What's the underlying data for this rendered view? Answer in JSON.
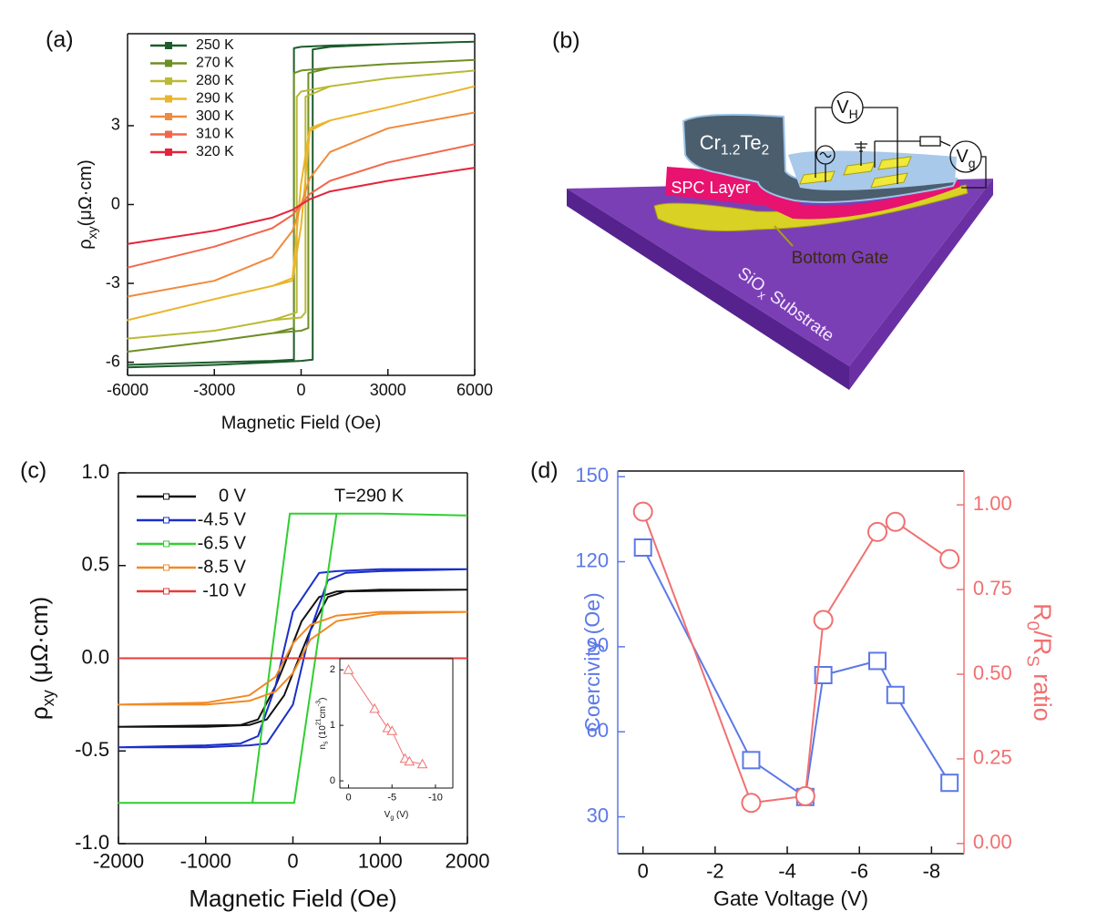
{
  "chart_data": [
    {
      "type": "line",
      "panel_label": "(a)",
      "xlabel": "Magnetic Field (Oe)",
      "ylabel": [
        "ρ",
        {
          "sub": "xy"
        },
        "(μΩ·cm)"
      ],
      "xlim": [
        -6000,
        6000
      ],
      "xticks": [
        -6000,
        -3000,
        0,
        3000,
        6000
      ],
      "ylim": [
        -6.5,
        6.5
      ],
      "yticks": [
        -6,
        -3,
        0,
        3
      ],
      "legend": "upper left",
      "series": [
        {
          "name": "250 K",
          "color": "#1d5c2c",
          "x": [
            6000,
            3000,
            1000,
            0,
            -250,
            -250,
            -1000,
            -3000,
            -6000,
            -6000,
            -3000,
            -1000,
            0,
            400,
            400,
            1000,
            3000,
            6000
          ],
          "values": [
            6.2,
            6.1,
            6.05,
            6.0,
            5.95,
            -5.9,
            -5.95,
            -6.0,
            -6.1,
            -6.2,
            -6.1,
            -6.0,
            -5.95,
            -5.9,
            5.9,
            6.0,
            6.1,
            6.2
          ]
        },
        {
          "name": "270 K",
          "color": "#6e8f25",
          "x": [
            6000,
            3000,
            1000,
            0,
            -250,
            -250,
            -1000,
            -3000,
            -6000,
            -6000,
            -3000,
            -1000,
            0,
            250,
            250,
            1000,
            3000,
            6000
          ],
          "values": [
            5.5,
            5.35,
            5.2,
            5.1,
            5.0,
            -4.7,
            -4.9,
            -5.2,
            -5.6,
            -5.6,
            -5.2,
            -4.9,
            -4.8,
            -4.7,
            5.0,
            5.2,
            5.35,
            5.5
          ]
        },
        {
          "name": "280 K",
          "color": "#b9ba35",
          "x": [
            6000,
            3000,
            1000,
            0,
            -150,
            -150,
            -1000,
            -3000,
            -6000,
            -6000,
            -3000,
            -1000,
            0,
            150,
            150,
            1000,
            3000,
            6000
          ],
          "values": [
            5.1,
            4.8,
            4.5,
            4.3,
            4.1,
            -4.1,
            -4.4,
            -4.8,
            -5.1,
            -5.1,
            -4.8,
            -4.4,
            -4.3,
            -4.1,
            4.1,
            4.5,
            4.8,
            5.1
          ]
        },
        {
          "name": "290 K",
          "color": "#e9b52b",
          "x": [
            6000,
            3000,
            1000,
            300,
            0,
            -300,
            -1000,
            -3000,
            -6000,
            -6000,
            -3000,
            -1000,
            -300,
            0,
            300,
            1000,
            3000,
            6000
          ],
          "values": [
            4.5,
            3.7,
            3.2,
            2.9,
            0.8,
            -2.8,
            -3.1,
            -3.6,
            -4.4,
            -4.4,
            -3.6,
            -3.1,
            -2.9,
            -0.8,
            2.8,
            3.2,
            3.7,
            4.5
          ]
        },
        {
          "name": "300 K",
          "color": "#f08a3c",
          "x": [
            -6000,
            -3000,
            -1000,
            -300,
            0,
            300,
            1000,
            3000,
            6000
          ],
          "values": [
            -3.5,
            -2.9,
            -2.0,
            -1.0,
            0,
            1.0,
            2.0,
            2.9,
            3.5
          ]
        },
        {
          "name": "310 K",
          "color": "#f2674c",
          "x": [
            -6000,
            -3000,
            -1000,
            -300,
            0,
            300,
            1000,
            3000,
            6000
          ],
          "values": [
            -2.4,
            -1.6,
            -0.9,
            -0.4,
            0,
            0.4,
            0.9,
            1.6,
            2.3
          ]
        },
        {
          "name": "320 K",
          "color": "#e5243b",
          "x": [
            -6000,
            -3000,
            -1000,
            -300,
            0,
            300,
            1000,
            3000,
            6000
          ],
          "values": [
            -1.5,
            -1.0,
            -0.5,
            -0.2,
            0,
            0.2,
            0.5,
            0.9,
            1.4
          ]
        }
      ]
    },
    {
      "type": "line",
      "panel_label": "(c)",
      "annotation": "T=290 K",
      "xlabel": "Magnetic Field (Oe)",
      "ylabel": [
        "ρ",
        {
          "sub": "xy"
        },
        "  (μΩ·cm)"
      ],
      "xlim": [
        -2000,
        2000
      ],
      "xticks": [
        -2000,
        -1000,
        0,
        1000,
        2000
      ],
      "ylim": [
        -1,
        1
      ],
      "yticks": [
        {
          "value": -1,
          "label": "-1.0"
        },
        -0.5,
        {
          "value": 0,
          "label": "0.0"
        },
        0.5,
        {
          "value": 1,
          "label": "1.0"
        }
      ],
      "legend": "upper left",
      "series": [
        {
          "name": "0 V",
          "color": "#111111",
          "x": [
            2000,
            1000,
            500,
            300,
            100,
            0,
            -200,
            -400,
            -600,
            -2000,
            -2000,
            -1000,
            -500,
            -300,
            -100,
            0,
            200,
            400,
            600,
            2000
          ],
          "values": [
            0.37,
            0.37,
            0.36,
            0.33,
            0.2,
            0.08,
            -0.15,
            -0.33,
            -0.36,
            -0.37,
            -0.37,
            -0.37,
            -0.36,
            -0.33,
            -0.2,
            -0.08,
            0.15,
            0.33,
            0.36,
            0.37
          ]
        },
        {
          "name": "-4.5 V",
          "color": "#1a2fc8",
          "x": [
            2000,
            1000,
            500,
            300,
            0,
            -200,
            -400,
            -600,
            -1000,
            -2000,
            -2000,
            -1000,
            -500,
            -300,
            0,
            200,
            400,
            600,
            1000,
            2000
          ],
          "values": [
            0.48,
            0.48,
            0.47,
            0.46,
            0.25,
            -0.15,
            -0.42,
            -0.46,
            -0.47,
            -0.48,
            -0.48,
            -0.48,
            -0.47,
            -0.46,
            -0.25,
            0.15,
            0.42,
            0.46,
            0.47,
            0.48
          ]
        },
        {
          "name": "-6.5 V",
          "color": "#2fcf2f",
          "x": [
            2000,
            1000,
            500,
            -35,
            -465,
            -1000,
            -2000,
            -2000,
            -1000,
            15,
            500,
            1000,
            2000
          ],
          "values": [
            0.77,
            0.78,
            0.78,
            0.78,
            -0.78,
            -0.78,
            -0.78,
            -0.78,
            -0.78,
            -0.78,
            0.78,
            0.78,
            0.77
          ]
        },
        {
          "name": "-8.5 V",
          "color": "#f08a24",
          "x": [
            2000,
            1000,
            500,
            200,
            0,
            -200,
            -500,
            -1000,
            -2000,
            -2000,
            -1000,
            -500,
            -200,
            0,
            200,
            500,
            1000,
            2000
          ],
          "values": [
            0.25,
            0.25,
            0.23,
            0.18,
            0.08,
            -0.1,
            -0.2,
            -0.24,
            -0.25,
            -0.25,
            -0.25,
            -0.23,
            -0.18,
            -0.08,
            0.1,
            0.2,
            0.24,
            0.25
          ]
        },
        {
          "name": "-10 V",
          "color": "#e83a3a",
          "x": [
            -2000,
            -1000,
            0,
            1000,
            2000
          ],
          "values": [
            0,
            0,
            0,
            0,
            0
          ]
        }
      ]
    },
    {
      "type": "line",
      "xlabel": [
        "V",
        {
          "sub": "g"
        },
        " (V)"
      ],
      "ylabel": [
        "n",
        {
          "sub": "s"
        },
        " (10",
        {
          "sup": "21"
        },
        "cm",
        {
          "sup": "-3"
        },
        ")"
      ],
      "xlim": [
        1,
        -12
      ],
      "xticks": [
        0,
        -5,
        -10
      ],
      "ylim": [
        -0.13,
        2.2
      ],
      "yticks": [
        0,
        1,
        2
      ],
      "series": [
        {
          "color": "#f07070",
          "marker": "triangle",
          "x": [
            0,
            -3,
            -4.5,
            -5,
            -6.5,
            -7,
            -8.5
          ],
          "values": [
            2.0,
            1.3,
            0.95,
            0.9,
            0.4,
            0.35,
            0.3
          ]
        }
      ]
    },
    {
      "type": "line",
      "panel_label": "(d)",
      "xlabel": "Gate Voltage (V)",
      "ylabel": "Coercivity (Oe)",
      "y2label": [
        "R",
        {
          "sub": "0"
        },
        "/R",
        {
          "sub": "S"
        },
        " ratio"
      ],
      "xlim": [
        0.7,
        -8.9
      ],
      "xticks": [
        0,
        -2,
        -4,
        -6,
        -8
      ],
      "ylim": [
        17,
        152
      ],
      "yticks": [
        30,
        60,
        90,
        120,
        150
      ],
      "y2lim": [
        -0.03,
        1.1
      ],
      "y2ticks": [
        {
          "value": 0,
          "label": "0.00"
        },
        0.25,
        {
          "value": 0.5,
          "label": "0.50"
        },
        0.75,
        {
          "value": 1,
          "label": "1.00"
        }
      ],
      "series": [
        {
          "color": "#5b78e8",
          "marker": "square",
          "x": [
            0,
            -3,
            -4.5,
            -5,
            -6.5,
            -7,
            -8.5
          ],
          "values": [
            125,
            50,
            37,
            80,
            85,
            73,
            42
          ]
        },
        {
          "color": "#f07070",
          "marker": "circle",
          "axis": "y2",
          "x": [
            0,
            -3,
            -4.5,
            -5,
            -6.5,
            -7,
            -8.5
          ],
          "values": [
            0.98,
            0.12,
            0.14,
            0.66,
            0.92,
            0.95,
            0.84
          ]
        }
      ]
    }
  ],
  "diagram": {
    "panel_label": "(b)",
    "top_layer": [
      "Cr",
      {
        "sub": "1.2"
      },
      "Te",
      {
        "sub": "2"
      }
    ],
    "middle_layer": "SPC Layer",
    "gate": "Bottom Gate",
    "substrate": [
      "SiO",
      {
        "sub": "x"
      },
      " Substrate"
    ],
    "hall_voltage": [
      "V",
      {
        "sub": "H"
      }
    ],
    "gate_voltage": [
      "V",
      {
        "sub": "g"
      }
    ]
  }
}
